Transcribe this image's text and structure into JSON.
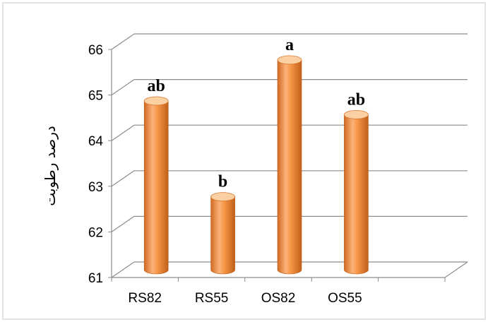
{
  "chart_data": {
    "type": "bar",
    "style": "3d-cylinder",
    "categories": [
      "RS82",
      "RS55",
      "OS82",
      "OS55"
    ],
    "values": [
      64.7,
      62.6,
      65.6,
      64.4
    ],
    "annotations": [
      "ab",
      "b",
      "a",
      "ab"
    ],
    "ylabel": "درصد رطوبت",
    "xlabel": "",
    "ylim": [
      61,
      66
    ],
    "yticks": [
      61,
      62,
      63,
      64,
      65,
      66
    ],
    "grid": true,
    "legend": "none",
    "colors": {
      "bar": "#f79646",
      "bar_light": "#fcd0a3",
      "bar_dark": "#c0601a",
      "grid": "#8c8c8c",
      "frame": "#d9d9d9"
    }
  }
}
